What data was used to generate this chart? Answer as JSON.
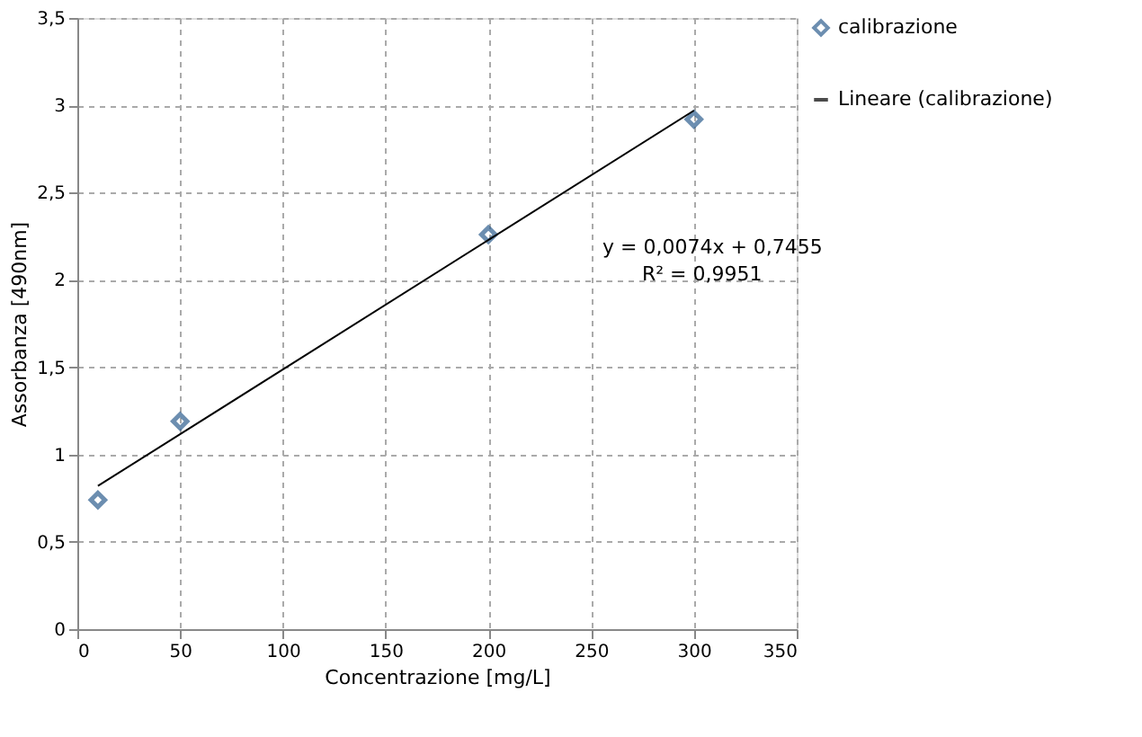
{
  "chart_data": {
    "type": "scatter",
    "xlabel": "Concentrazione [mg/L]",
    "ylabel": "Assorbanza [490nm]",
    "x": [
      10,
      50,
      200,
      300
    ],
    "series": [
      {
        "name": "calibrazione",
        "color": "#2f5f8f",
        "values": [
          0.74,
          1.19,
          2.26,
          2.92
        ],
        "marker": "diamond"
      },
      {
        "name": "Lineare (calibrazione)",
        "type": "line",
        "color": "#000000",
        "x": [
          10,
          300
        ],
        "values": [
          0.82,
          2.97
        ],
        "marker": "none",
        "line_style": "solid"
      }
    ],
    "annotations": [
      "y = 0,0074x + 0,7455",
      "R² = 0,9951"
    ],
    "xlim": [
      0,
      350
    ],
    "xticks": [
      0,
      50,
      100,
      150,
      200,
      250,
      300,
      350
    ],
    "ylim": [
      0,
      3.5
    ],
    "yticks": [
      0,
      {
        "value": 0.5,
        "label": "0,5"
      },
      1,
      {
        "value": 1.5,
        "label": "1,5"
      },
      2,
      {
        "value": 2.5,
        "label": "2,5"
      },
      3,
      {
        "value": 3.5,
        "label": "3,5"
      }
    ],
    "grid": true,
    "legend": "right"
  }
}
